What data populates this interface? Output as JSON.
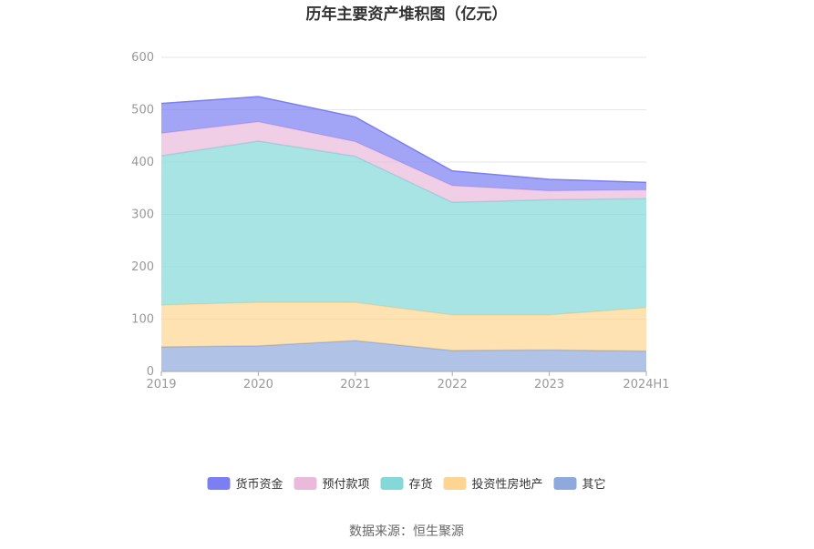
{
  "chart_data": {
    "type": "area",
    "stacked": true,
    "title": "历年主要资产堆积图（亿元）",
    "categories": [
      "2019",
      "2020",
      "2021",
      "2022",
      "2023",
      "2024H1"
    ],
    "ylim": [
      0,
      600
    ],
    "yticks": [
      0,
      100,
      200,
      300,
      400,
      500,
      600
    ],
    "grid": true,
    "legend_position": "bottom",
    "series": [
      {
        "name": "其它",
        "color": "#8eaadd",
        "values": [
          47,
          49,
          59,
          40,
          41,
          39
        ]
      },
      {
        "name": "投资性房地产",
        "color": "#fdd592",
        "values": [
          80,
          83,
          73,
          68,
          67,
          83
        ]
      },
      {
        "name": "存货",
        "color": "#84d8d8",
        "values": [
          285,
          308,
          279,
          215,
          220,
          208
        ]
      },
      {
        "name": "预付款项",
        "color": "#eab9dc",
        "values": [
          43,
          37,
          28,
          32,
          17,
          17
        ]
      },
      {
        "name": "货币资金",
        "color": "#7b7ff1",
        "values": [
          57,
          48,
          47,
          28,
          22,
          14
        ]
      }
    ],
    "legend_order": [
      "货币资金",
      "预付款项",
      "存货",
      "投资性房地产",
      "其它"
    ]
  },
  "source_text": "数据来源：恒生聚源"
}
